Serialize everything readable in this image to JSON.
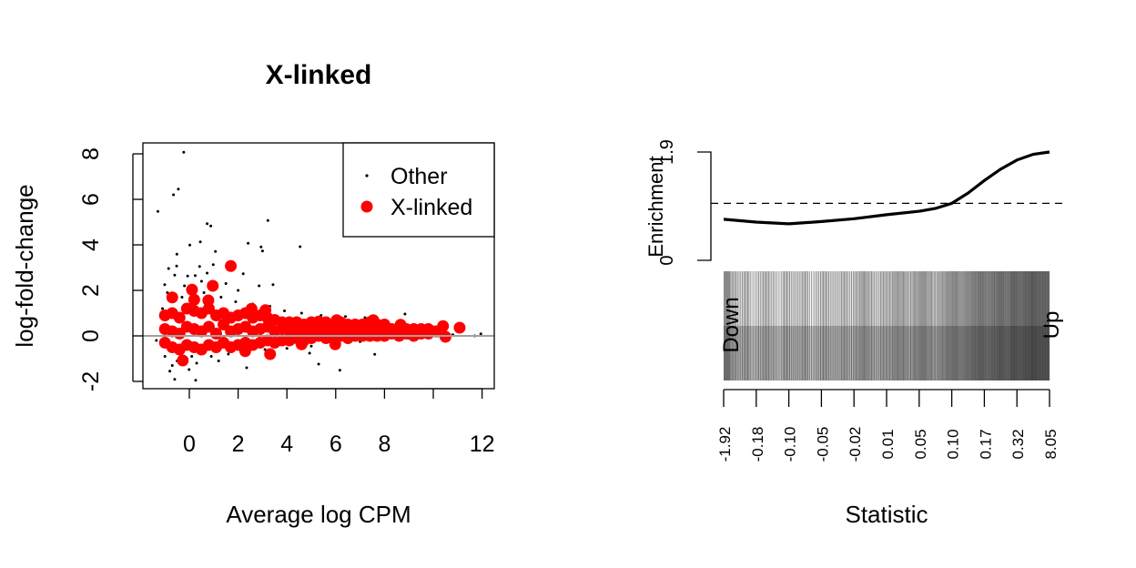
{
  "chart_data": [
    {
      "type": "scatter",
      "title": "X-linked",
      "xlabel": "Average log CPM",
      "ylabel": "log-fold-change",
      "xlim": [
        -1.9,
        12.5
      ],
      "ylim": [
        -2.3,
        8.5
      ],
      "xticks": [
        0,
        2,
        4,
        6,
        8,
        10,
        12
      ],
      "xtick_labels": [
        "0",
        "2",
        "4",
        "6",
        "8",
        "",
        "12"
      ],
      "yticks": [
        -2,
        0,
        2,
        4,
        6,
        8
      ],
      "ytick_labels": [
        "-2",
        "0",
        "2",
        "4",
        "6",
        "8"
      ],
      "reference_line_y": 0,
      "reference_line_color": "#a0a0a0",
      "legend": {
        "placement": "top-right",
        "entries": [
          "Other",
          "X-linked"
        ]
      },
      "series": [
        {
          "name": "Other",
          "color": "#000000",
          "points": [
            [
              -0.23,
              8.07
            ],
            [
              -0.45,
              6.45
            ],
            [
              -0.65,
              6.2
            ],
            [
              -1.29,
              5.47
            ],
            [
              0.73,
              4.93
            ],
            [
              0.88,
              4.83
            ],
            [
              3.22,
              5.07
            ],
            [
              0.02,
              3.99
            ],
            [
              0.45,
              4.13
            ],
            [
              1.07,
              3.71
            ],
            [
              2.41,
              4.07
            ],
            [
              2.94,
              3.91
            ],
            [
              3.0,
              3.73
            ],
            [
              4.54,
              3.92
            ],
            [
              -0.51,
              3.59
            ],
            [
              -0.85,
              2.96
            ],
            [
              -0.52,
              3.07
            ],
            [
              0.42,
              3.05
            ],
            [
              -0.6,
              2.67
            ],
            [
              -0.07,
              2.63
            ],
            [
              0.24,
              2.65
            ],
            [
              0.73,
              2.76
            ],
            [
              0.98,
              3.13
            ],
            [
              2.21,
              2.73
            ],
            [
              3.43,
              2.25
            ],
            [
              2.86,
              2.2
            ],
            [
              -1.01,
              2.25
            ],
            [
              8.84,
              0.96
            ],
            [
              6.17,
              -1.51
            ],
            [
              7.6,
              -0.81
            ],
            [
              -0.6,
              -1.91
            ],
            [
              0.26,
              -1.95
            ],
            [
              -0.8,
              -1.55
            ],
            [
              -0.01,
              -1.48
            ],
            [
              2.35,
              -1.4
            ],
            [
              5.3,
              -1.24
            ],
            [
              4.93,
              -0.76
            ],
            [
              -1.35,
              -0.2
            ],
            [
              11.95,
              0.09
            ],
            [
              11.7,
              0.0
            ],
            [
              -0.9,
              1.9
            ],
            [
              -0.3,
              1.7
            ],
            [
              0.6,
              1.9
            ],
            [
              1.3,
              1.7
            ],
            [
              1.9,
              1.5
            ],
            [
              2.6,
              1.4
            ],
            [
              3.3,
              1.3
            ],
            [
              3.9,
              1.1
            ],
            [
              4.6,
              1.0
            ],
            [
              5.4,
              0.9
            ],
            [
              6.4,
              0.85
            ],
            [
              7.2,
              0.8
            ],
            [
              -1.0,
              -0.9
            ],
            [
              -0.5,
              -1.1
            ],
            [
              0.3,
              -1.2
            ],
            [
              0.9,
              -0.9
            ],
            [
              1.6,
              -0.8
            ],
            [
              2.4,
              -0.7
            ],
            [
              3.1,
              -0.6
            ],
            [
              4.0,
              -0.55
            ],
            [
              5.0,
              -0.45
            ],
            [
              6.0,
              -0.35
            ],
            [
              7.0,
              -0.25
            ],
            [
              8.0,
              -0.2
            ],
            [
              9.0,
              -0.1
            ],
            [
              9.6,
              -0.05
            ],
            [
              10.2,
              0.0
            ],
            [
              10.8,
              0.05
            ],
            [
              -0.7,
              -1.3
            ],
            [
              0.1,
              -0.9
            ],
            [
              1.2,
              -1.1
            ],
            [
              -1.1,
              1.2
            ],
            [
              -0.2,
              2.2
            ],
            [
              0.5,
              2.4
            ],
            [
              1.5,
              2.3
            ],
            [
              2.0,
              2.0
            ]
          ]
        },
        {
          "name": "X-linked",
          "color": "#ff0000",
          "points": [
            [
              1.7,
              3.07
            ],
            [
              0.96,
              2.2
            ],
            [
              0.11,
              2.03
            ],
            [
              -0.7,
              1.69
            ],
            [
              0.2,
              1.59
            ],
            [
              0.78,
              1.56
            ],
            [
              -0.27,
              -1.08
            ],
            [
              2.29,
              -0.67
            ],
            [
              3.31,
              -0.8
            ],
            [
              2.55,
              1.19
            ],
            [
              3.12,
              1.13
            ],
            [
              11.08,
              0.36
            ],
            [
              10.4,
              0.43
            ],
            [
              10.5,
              -0.04
            ],
            [
              7.54,
              0.69
            ],
            [
              8.66,
              0.49
            ],
            [
              9.78,
              0.29
            ],
            [
              5.98,
              -0.37
            ],
            [
              6.04,
              0.69
            ],
            [
              5.3,
              0.63
            ],
            [
              4.6,
              -0.37
            ],
            [
              -1.0,
              -0.3
            ],
            [
              -1.0,
              0.3
            ],
            [
              -1.0,
              0.9
            ],
            [
              -0.7,
              -0.5
            ],
            [
              -0.7,
              0.2
            ],
            [
              -0.7,
              1.0
            ],
            [
              -0.4,
              -0.6
            ],
            [
              -0.4,
              0.1
            ],
            [
              -0.4,
              0.8
            ],
            [
              -0.1,
              -0.4
            ],
            [
              -0.1,
              0.4
            ],
            [
              -0.1,
              1.2
            ],
            [
              0.2,
              -0.5
            ],
            [
              0.2,
              0.3
            ],
            [
              0.2,
              1.1
            ],
            [
              0.5,
              -0.6
            ],
            [
              0.5,
              0.2
            ],
            [
              0.5,
              1.0
            ],
            [
              0.8,
              -0.4
            ],
            [
              0.8,
              0.4
            ],
            [
              0.8,
              1.2
            ],
            [
              1.1,
              -0.5
            ],
            [
              1.1,
              0.1
            ],
            [
              1.1,
              0.9
            ],
            [
              1.4,
              -0.3
            ],
            [
              1.4,
              0.5
            ],
            [
              1.4,
              1.0
            ],
            [
              1.7,
              -0.5
            ],
            [
              1.7,
              0.2
            ],
            [
              1.7,
              0.8
            ],
            [
              2.0,
              -0.4
            ],
            [
              2.0,
              0.3
            ],
            [
              2.0,
              0.9
            ],
            [
              2.3,
              -0.3
            ],
            [
              2.3,
              0.4
            ],
            [
              2.3,
              1.0
            ],
            [
              2.6,
              -0.4
            ],
            [
              2.6,
              0.2
            ],
            [
              2.6,
              0.8
            ],
            [
              2.9,
              -0.3
            ],
            [
              2.9,
              0.3
            ],
            [
              2.9,
              0.9
            ],
            [
              3.2,
              -0.2
            ],
            [
              3.2,
              0.4
            ],
            [
              3.2,
              0.8
            ],
            [
              3.5,
              -0.3
            ],
            [
              3.5,
              0.2
            ],
            [
              3.5,
              0.7
            ],
            [
              3.8,
              -0.2
            ],
            [
              3.8,
              0.3
            ],
            [
              3.8,
              0.6
            ],
            [
              4.1,
              -0.2
            ],
            [
              4.1,
              0.2
            ],
            [
              4.1,
              0.6
            ],
            [
              4.4,
              -0.1
            ],
            [
              4.4,
              0.3
            ],
            [
              4.4,
              0.6
            ],
            [
              4.7,
              -0.2
            ],
            [
              4.7,
              0.2
            ],
            [
              4.7,
              0.5
            ],
            [
              5.0,
              -0.1
            ],
            [
              5.0,
              0.3
            ],
            [
              5.0,
              0.6
            ],
            [
              5.3,
              0.0
            ],
            [
              5.3,
              0.2
            ],
            [
              5.3,
              0.5
            ],
            [
              5.6,
              -0.1
            ],
            [
              5.6,
              0.3
            ],
            [
              5.6,
              0.6
            ],
            [
              5.9,
              -0.1
            ],
            [
              5.9,
              0.2
            ],
            [
              5.9,
              0.5
            ],
            [
              6.2,
              0.0
            ],
            [
              6.2,
              0.3
            ],
            [
              6.2,
              0.6
            ],
            [
              6.5,
              -0.1
            ],
            [
              6.5,
              0.2
            ],
            [
              6.5,
              0.5
            ],
            [
              6.8,
              0.0
            ],
            [
              6.8,
              0.3
            ],
            [
              6.8,
              0.5
            ],
            [
              7.1,
              0.0
            ],
            [
              7.1,
              0.2
            ],
            [
              7.1,
              0.5
            ],
            [
              7.4,
              0.0
            ],
            [
              7.4,
              0.3
            ],
            [
              7.4,
              0.6
            ],
            [
              7.7,
              0.0
            ],
            [
              7.7,
              0.2
            ],
            [
              7.7,
              0.5
            ],
            [
              8.0,
              0.0
            ],
            [
              8.0,
              0.3
            ],
            [
              8.0,
              0.5
            ],
            [
              8.3,
              0.1
            ],
            [
              8.3,
              0.3
            ],
            [
              8.6,
              0.0
            ],
            [
              8.6,
              0.3
            ],
            [
              8.9,
              0.1
            ],
            [
              8.9,
              0.3
            ],
            [
              9.2,
              0.0
            ],
            [
              9.2,
              0.3
            ],
            [
              9.5,
              0.1
            ],
            [
              9.5,
              0.3
            ],
            [
              9.8,
              0.1
            ],
            [
              9.8,
              0.3
            ],
            [
              10.1,
              0.2
            ]
          ]
        }
      ]
    },
    {
      "type": "barcode",
      "xlabel": "Statistic",
      "ylabel": "Enrichment",
      "enrichment_ylim": [
        0,
        1.9
      ],
      "enrichment_tick_labels": [
        "0",
        "1.9"
      ],
      "reference_line_y": 1.0,
      "xtick_labels": [
        "-1.92",
        "-0.18",
        "-0.10",
        "-0.05",
        "-0.02",
        "0.01",
        "0.05",
        "0.10",
        "0.17",
        "0.32",
        "8.05"
      ],
      "direction_labels": {
        "left": "Down",
        "right": "Up"
      },
      "enrichment_curve": {
        "rank_fraction": [
          0,
          0.1,
          0.2,
          0.3,
          0.4,
          0.5,
          0.6,
          0.65,
          0.7,
          0.75,
          0.8,
          0.85,
          0.9,
          0.95,
          1.0
        ],
        "enrichment": [
          0.72,
          0.67,
          0.64,
          0.68,
          0.73,
          0.8,
          0.86,
          0.91,
          1.0,
          1.18,
          1.4,
          1.6,
          1.76,
          1.86,
          1.9
        ]
      },
      "barcode_bin_counts": [
        8,
        5,
        4,
        5,
        3,
        4,
        5,
        4,
        3,
        5,
        4,
        4,
        5,
        3,
        4,
        5,
        4,
        4,
        5,
        4,
        5,
        6,
        5,
        4,
        5,
        5,
        6,
        6,
        5,
        6,
        7,
        6,
        5,
        6,
        7,
        8,
        7,
        8,
        9,
        10,
        9,
        10,
        11,
        10,
        12,
        11,
        12,
        13,
        12,
        12
      ]
    }
  ]
}
